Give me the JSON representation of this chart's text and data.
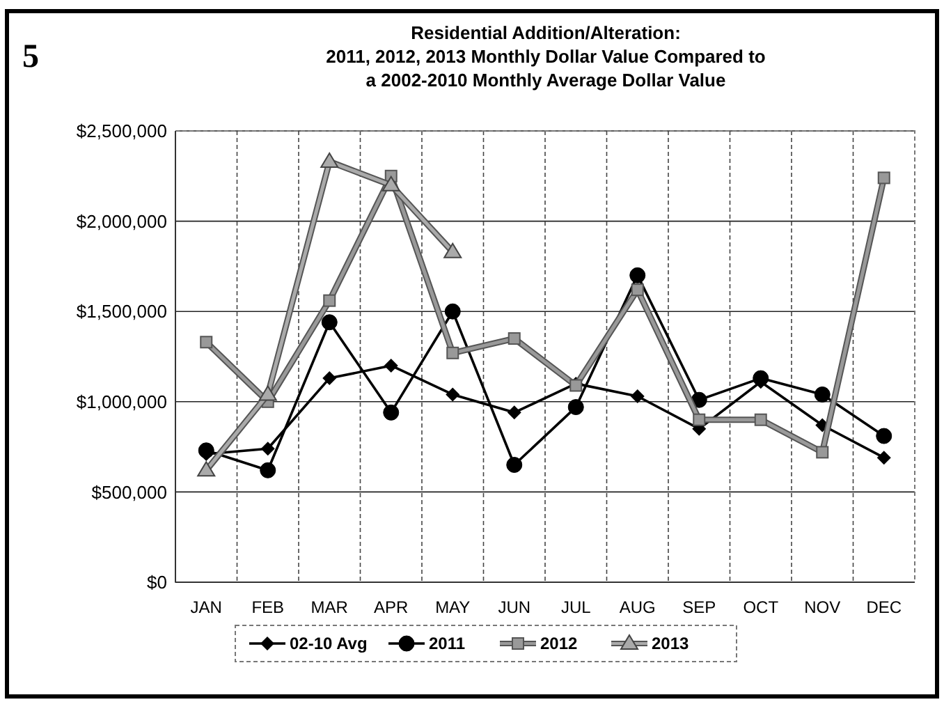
{
  "chart_data": {
    "type": "line",
    "title": "Residential Addition/Alteration:\n2011, 2012, 2013 Monthly Dollar Value Compared to\na 2002-2010 Monthly Average Dollar Value",
    "annotations": [
      "5"
    ],
    "categories": [
      "JAN",
      "FEB",
      "MAR",
      "APR",
      "MAY",
      "JUN",
      "JUL",
      "AUG",
      "SEP",
      "OCT",
      "NOV",
      "DEC"
    ],
    "series": [
      {
        "name": "02-10 Avg",
        "color": "#000000",
        "marker": "diamond",
        "values": [
          710000,
          740000,
          1130000,
          1200000,
          1040000,
          940000,
          1100000,
          1030000,
          850000,
          1110000,
          870000,
          690000
        ]
      },
      {
        "name": "2011",
        "color": "#000000",
        "marker": "circle",
        "values": [
          730000,
          620000,
          1440000,
          940000,
          1500000,
          650000,
          970000,
          1700000,
          1010000,
          1130000,
          1040000,
          810000
        ]
      },
      {
        "name": "2012",
        "color": "#999999",
        "marker": "square",
        "values": [
          1330000,
          1000000,
          1560000,
          2250000,
          1270000,
          1350000,
          1090000,
          1620000,
          900000,
          900000,
          720000,
          2240000
        ]
      },
      {
        "name": "2013",
        "color": "#aaaaaa",
        "marker": "triangle",
        "values": [
          620000,
          1040000,
          2330000,
          2200000,
          1830000,
          null,
          null,
          null,
          null,
          null,
          null,
          null
        ]
      }
    ],
    "ylim": [
      0,
      2500000
    ],
    "yticks": [
      {
        "value": 0,
        "label": "$0"
      },
      {
        "value": 500000,
        "label": "$500,000"
      },
      {
        "value": 1000000,
        "label": "$1,000,000"
      },
      {
        "value": 1500000,
        "label": "$1,500,000"
      },
      {
        "value": 2000000,
        "label": "$2,000,000"
      },
      {
        "value": 2500000,
        "label": "$2,500,000"
      }
    ],
    "grid": true,
    "legend": "bottom"
  }
}
